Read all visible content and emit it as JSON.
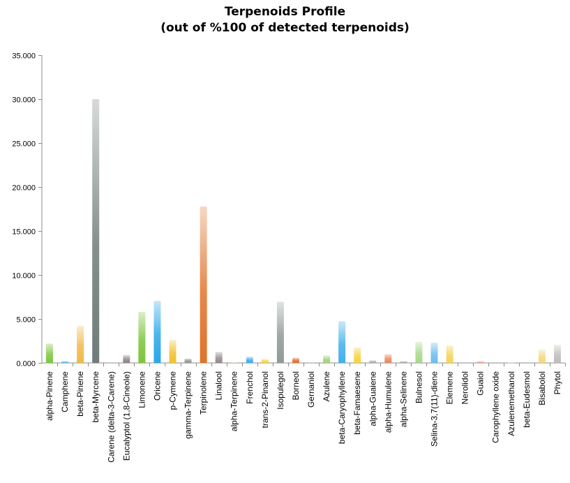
{
  "chart_data": {
    "type": "bar",
    "title": "Terpenoids Profile",
    "subtitle": "(out of %100 of detected terpenoids)",
    "xlabel": "",
    "ylabel": "",
    "ylim": [
      0,
      35
    ],
    "y_ticks": [
      0,
      5,
      10,
      15,
      20,
      25,
      30,
      35
    ],
    "y_tick_labels": [
      "0.000",
      "5.000",
      "10.000",
      "15.000",
      "20.000",
      "25.000",
      "30.000",
      "35.000"
    ],
    "grid": false,
    "legend": "none",
    "categories": [
      "alpha-Pinene",
      "Camphene",
      "beta-Pinene",
      "beta-Myrcene",
      "Carene (delta-3-Carene)",
      "Eucalyptol (1,8-Cineole)",
      "Limonene",
      "Oricene",
      "p-Cymene",
      "gamma-Terpinene",
      "Terpinolene",
      "Linalool",
      "alpha-Terpinene",
      "Frenchol",
      "trans-2-Pinanol",
      "Isopulegol",
      "Borneol",
      "Gernaniol",
      "Azulene",
      "beta-Caryophyllene",
      "beta-Famaesene",
      "alpha-Guaiene",
      "alpha-Humulene",
      "alpha-Selinene",
      "Bulnesol",
      "Selina-3,7(11)-diene",
      "Elemene",
      "Nerolidol",
      "Guaiol",
      "Carophyllene oxide",
      "Azulenemethanol",
      "beta-Eudesmol",
      "Bisabolol",
      "Phytol"
    ],
    "values": [
      2.2,
      0.2,
      4.2,
      30.0,
      0.0,
      0.9,
      5.8,
      7.05,
      2.6,
      0.5,
      17.8,
      1.25,
      0.05,
      0.7,
      0.45,
      6.95,
      0.6,
      0.05,
      0.85,
      4.75,
      1.75,
      0.3,
      1.0,
      0.2,
      2.4,
      2.3,
      2.0,
      0.0,
      0.2,
      0.0,
      0.05,
      0.0,
      1.55,
      2.05
    ],
    "bar_colors": [
      "#7ec63f",
      "#4eb6e6",
      "#f0b84a",
      "#6f7c79",
      "#9d8c8c",
      "#8e8284",
      "#7cc43a",
      "#2aa8e6",
      "#f2c12e",
      "#8f928e",
      "#e0732a",
      "#968a8c",
      "#8fcf6a",
      "#3aa9ea",
      "#f5d23c",
      "#8f9a96",
      "#e26a2c",
      "#a09696",
      "#9bd476",
      "#42b0ec",
      "#f6d23e",
      "#a9a9a6",
      "#e8875c",
      "#a6a6a6",
      "#a6d98a",
      "#6ebcee",
      "#f3d456",
      "#bbb7b2",
      "#eea382",
      "#b9b3b3",
      "#f0bb80",
      "#ccc6c6",
      "#f3d87e",
      "#bdbebb"
    ]
  }
}
